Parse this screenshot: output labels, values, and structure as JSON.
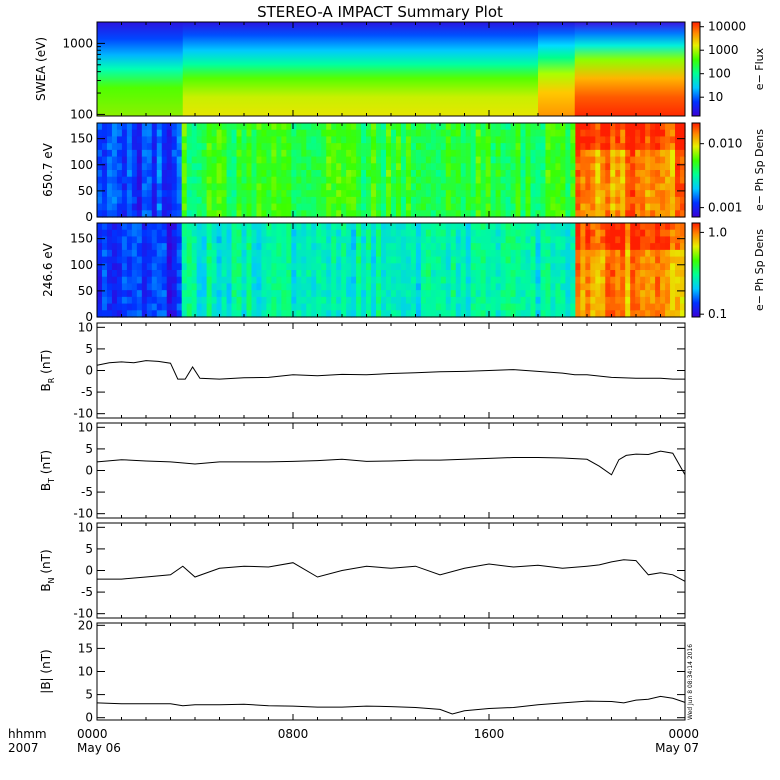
{
  "title": "STEREO-A IMPACT Summary Plot",
  "timestamp": "Wed Jun  8 08:34:14 2016",
  "x_axis": {
    "corner_labels": [
      "hhmm",
      "2007"
    ],
    "ticks": [
      {
        "hour": 0,
        "label": "0000",
        "date": "May 06"
      },
      {
        "hour": 8,
        "label": "0800",
        "date": ""
      },
      {
        "hour": 16,
        "label": "1600",
        "date": ""
      },
      {
        "hour": 24,
        "label": "0000",
        "date": "May 07"
      }
    ]
  },
  "chart_data": [
    {
      "type": "heatmap",
      "id": "swea",
      "ylabel": "SWEA (eV)",
      "yscale": "log",
      "ylim": [
        95,
        2000
      ],
      "ytick_labels": [
        "100",
        "1000"
      ],
      "colorbar": {
        "label": "e− Flux",
        "scale": "log",
        "tick_labels": [
          "10",
          "100",
          "1000",
          "10000"
        ]
      },
      "description_columns_hours": [
        0,
        2.5,
        3.5,
        18,
        19.5,
        24
      ],
      "levels_low_energy_by_interval": [
        "green",
        "yellow",
        "yellow-orange",
        "red"
      ]
    },
    {
      "type": "heatmap",
      "id": "pad650",
      "ylabel": "650.7 eV",
      "ylim": [
        0,
        180
      ],
      "ytick_labels": [
        "0",
        "50",
        "100",
        "150"
      ],
      "colorbar": {
        "label": "e− Ph Sp Dens",
        "scale": "log",
        "tick_labels": [
          "0.001",
          "0.010"
        ]
      },
      "interval_levels": [
        {
          "start": 0,
          "end": 3.5,
          "level": 0.15
        },
        {
          "start": 3.5,
          "end": 19.5,
          "level": 0.55
        },
        {
          "start": 19.5,
          "end": 24,
          "level": 0.9
        }
      ]
    },
    {
      "type": "heatmap",
      "id": "pad246",
      "ylabel": "246.6 eV",
      "ylim": [
        0,
        180
      ],
      "ytick_labels": [
        "0",
        "50",
        "100",
        "150"
      ],
      "colorbar": {
        "label": "e− Ph Sp Dens",
        "scale": "log",
        "tick_labels": [
          "0.1",
          "1.0"
        ]
      },
      "interval_levels": [
        {
          "start": 0,
          "end": 3.5,
          "level": 0.12
        },
        {
          "start": 3.5,
          "end": 19.5,
          "level": 0.4
        },
        {
          "start": 19.5,
          "end": 24,
          "level": 0.88
        }
      ]
    },
    {
      "type": "line",
      "id": "br",
      "ylabel": "B_R (nT)",
      "ylim": [
        -11,
        11
      ],
      "ytick_labels": [
        "-10",
        "-5",
        "0",
        "5",
        "10"
      ],
      "x": [
        0,
        0.5,
        1,
        1.5,
        2,
        2.5,
        3,
        3.3,
        3.6,
        3.9,
        4.2,
        5,
        6,
        7,
        8,
        9,
        10,
        11,
        12,
        13,
        14,
        15,
        16,
        17,
        18,
        19,
        19.5,
        20,
        21,
        22,
        23,
        23.5,
        24
      ],
      "y": [
        1.2,
        1.8,
        2,
        1.8,
        2.3,
        2.1,
        1.7,
        -2,
        -2,
        0.8,
        -1.8,
        -2,
        -1.7,
        -1.6,
        -1,
        -1.2,
        -0.9,
        -1,
        -0.7,
        -0.5,
        -0.3,
        -0.2,
        0,
        0.2,
        -0.2,
        -0.6,
        -1,
        -1,
        -1.6,
        -1.8,
        -1.8,
        -2,
        -2
      ]
    },
    {
      "type": "line",
      "id": "bt",
      "ylabel": "B_T (nT)",
      "ylim": [
        -11,
        11
      ],
      "ytick_labels": [
        "-10",
        "-5",
        "0",
        "5",
        "10"
      ],
      "x": [
        0,
        1,
        2,
        3,
        4,
        5,
        6,
        7,
        8,
        9,
        10,
        11,
        12,
        13,
        14,
        15,
        16,
        17,
        18,
        19,
        20,
        20.5,
        21,
        21.3,
        21.6,
        22,
        22.5,
        23,
        23.5,
        24
      ],
      "y": [
        2,
        2.5,
        2.2,
        2,
        1.5,
        2,
        2,
        2,
        2.1,
        2.3,
        2.6,
        2.1,
        2.2,
        2.4,
        2.4,
        2.6,
        2.8,
        3,
        3,
        2.9,
        2.6,
        1,
        -1,
        2.5,
        3.5,
        3.8,
        3.7,
        4.5,
        4,
        -1
      ]
    },
    {
      "type": "line",
      "id": "bn",
      "ylabel": "B_N (nT)",
      "ylim": [
        -11,
        11
      ],
      "ytick_labels": [
        "-10",
        "-5",
        "0",
        "5",
        "10"
      ],
      "x": [
        0,
        1,
        2,
        3,
        3.5,
        4,
        5,
        6,
        7,
        8,
        9,
        10,
        11,
        12,
        13,
        14,
        15,
        16,
        17,
        18,
        19,
        20,
        20.5,
        21,
        21.5,
        22,
        22.5,
        23,
        23.5,
        24
      ],
      "y": [
        -2,
        -2,
        -1.5,
        -1,
        1,
        -1.5,
        0.5,
        1,
        0.8,
        1.8,
        -1.5,
        0,
        1,
        0.5,
        1,
        -1,
        0.5,
        1.5,
        0.8,
        1.2,
        0.5,
        1,
        1.3,
        2,
        2.5,
        2.3,
        -1,
        -0.5,
        -1,
        -2.5
      ]
    },
    {
      "type": "line",
      "id": "bmag",
      "ylabel": "|B| (nT)",
      "ylim": [
        -0.5,
        20.5
      ],
      "ytick_labels": [
        "0",
        "5",
        "10",
        "15",
        "20"
      ],
      "x": [
        0,
        1,
        2,
        3,
        3.5,
        4,
        5,
        6,
        7,
        8,
        9,
        10,
        11,
        12,
        13,
        14,
        14.5,
        15,
        16,
        17,
        18,
        19,
        20,
        21,
        21.5,
        22,
        22.5,
        23,
        23.5,
        24
      ],
      "y": [
        3.2,
        3,
        3,
        3,
        2.6,
        2.8,
        2.8,
        2.9,
        2.6,
        2.5,
        2.3,
        2.3,
        2.5,
        2.4,
        2.2,
        1.8,
        0.8,
        1.5,
        2,
        2.2,
        2.8,
        3.2,
        3.6,
        3.5,
        3.2,
        3.8,
        4,
        4.6,
        4.2,
        3.3
      ]
    }
  ]
}
